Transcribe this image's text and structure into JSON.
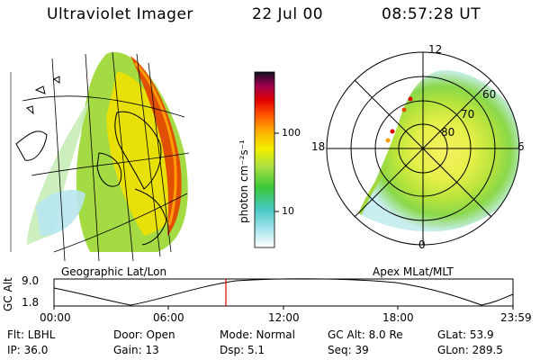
{
  "header": {
    "instrument": "Ultraviolet Imager",
    "date": "22 Jul 00",
    "time": "08:57:28 UT"
  },
  "left_panel": {
    "label": "Geographic Lat/Lon"
  },
  "right_panel": {
    "label": "Apex MLat/MLT",
    "mlt_labels": {
      "top": "12",
      "left": "18",
      "right": "6",
      "bottom": "0"
    },
    "lat_labels": [
      "60",
      "70",
      "80"
    ]
  },
  "colorbar": {
    "unit_label": "photon cm⁻²s⁻¹",
    "ticks": [
      "100",
      "10"
    ],
    "scale": "log"
  },
  "altitude_plot": {
    "ylabel": "GC Alt",
    "yticks": [
      "9.0",
      "1.8"
    ],
    "xticks": [
      "00:00",
      "06:00",
      "12:00",
      "18:00",
      "23:59"
    ],
    "current_time_marker": "08:57",
    "marker_color": "#e00000"
  },
  "info": {
    "flt": "Flt: LBHL",
    "door": "Door: Open",
    "mode": "Mode: Normal",
    "gc_alt": "GC Alt: 8.0 Re",
    "glat": "GLat:  53.9",
    "ip": "IP: 36.0",
    "gain": "Gain: 13",
    "dsp": "Dsp:    5.1",
    "seq": "Seq: 39",
    "glon": "GLon: 289.5"
  },
  "colors": {
    "aurora_low": "#b8e6f0",
    "aurora_mid": "#9fd838",
    "aurora_high": "#f0e000",
    "aurora_peak": "#e05000"
  }
}
